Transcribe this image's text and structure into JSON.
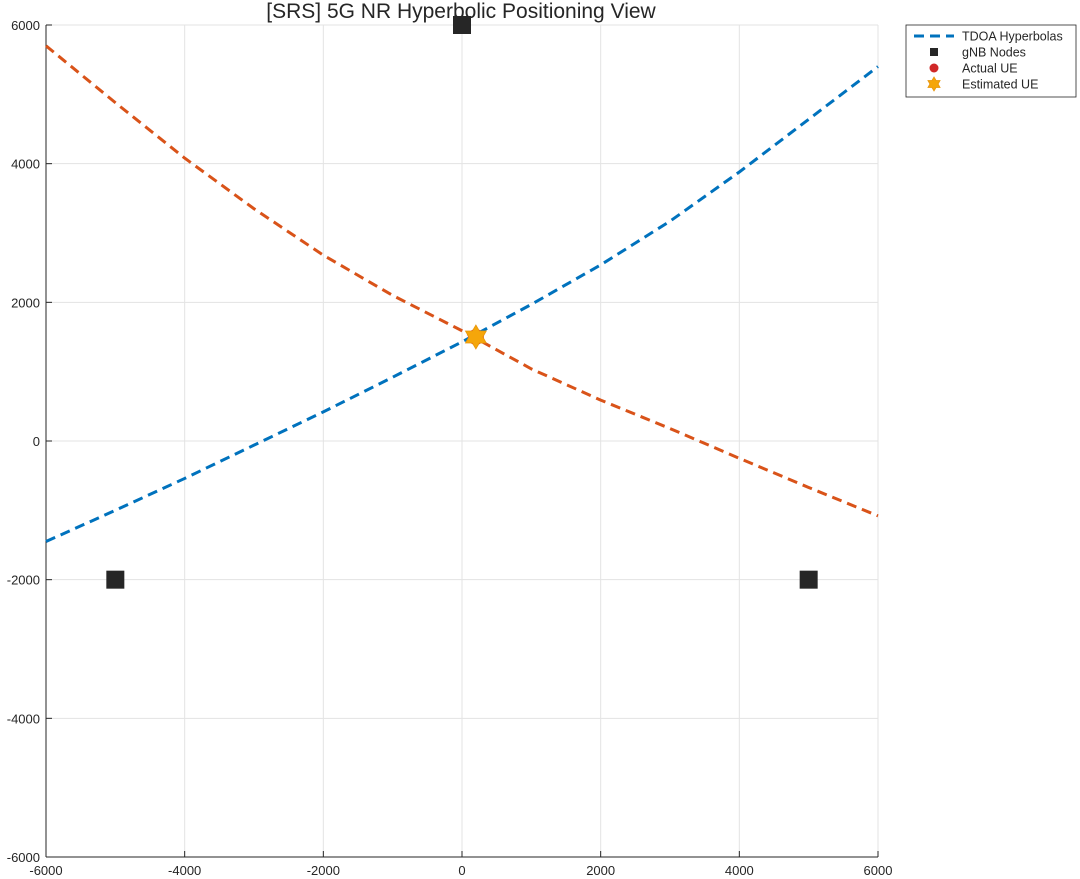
{
  "chart_data": {
    "type": "scatter",
    "title": "[SRS] 5G NR Hyperbolic Positioning View",
    "xlim": [
      -6000,
      6000
    ],
    "ylim": [
      -6000,
      6000
    ],
    "x_ticks": [
      -6000,
      -4000,
      -2000,
      0,
      2000,
      4000,
      6000
    ],
    "y_ticks": [
      -6000,
      -4000,
      -2000,
      0,
      2000,
      4000,
      6000
    ],
    "grid": true,
    "legend_position": "outside-top-right",
    "colors": {
      "hyperbola_1": "#0072BD",
      "hyperbola_2": "#D95319",
      "gnb": "#262626",
      "actual_ue": "#D02828",
      "estimated_ue": "#F5A60A",
      "grid": "#E3E3E3",
      "axis": "#262626"
    },
    "series": [
      {
        "name": "TDOA Hyperbolas",
        "style": "dashed-line",
        "points": [
          [
            -6000,
            -1450
          ],
          [
            -5000,
            -1000
          ],
          [
            -4000,
            -540
          ],
          [
            -3000,
            -60
          ],
          [
            -2000,
            420
          ],
          [
            -1000,
            920
          ],
          [
            0,
            1430
          ],
          [
            1000,
            1970
          ],
          [
            2000,
            2540
          ],
          [
            3000,
            3170
          ],
          [
            4000,
            3880
          ],
          [
            5000,
            4640
          ],
          [
            6000,
            5400
          ]
        ]
      },
      {
        "style": "dashed-line",
        "points": [
          [
            -6000,
            5700
          ],
          [
            -5000,
            4880
          ],
          [
            -4000,
            4080
          ],
          [
            -3000,
            3350
          ],
          [
            -2000,
            2680
          ],
          [
            -1000,
            2100
          ],
          [
            0,
            1590
          ],
          [
            1000,
            1040
          ],
          [
            2000,
            590
          ],
          [
            3000,
            180
          ],
          [
            4000,
            -250
          ],
          [
            5000,
            -670
          ],
          [
            6000,
            -1080
          ]
        ]
      },
      {
        "name": "gNB Nodes",
        "style": "square-marker",
        "points": [
          [
            0,
            6000
          ],
          [
            -5000,
            -2000
          ],
          [
            5000,
            -2000
          ]
        ]
      },
      {
        "name": "Actual UE",
        "style": "circle-marker",
        "points": [
          [
            200,
            1500
          ]
        ]
      },
      {
        "name": "Estimated UE",
        "style": "hexagram-marker",
        "points": [
          [
            200,
            1500
          ]
        ]
      }
    ]
  }
}
